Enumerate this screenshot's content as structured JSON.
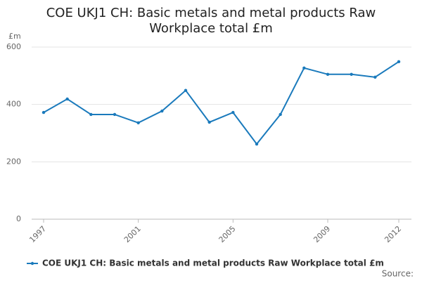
{
  "chart_data": {
    "type": "line",
    "title": "COE UKJ1 CH: Basic metals and metal products Raw Workplace total £m",
    "y_label": "£m",
    "x": [
      1997,
      1998,
      1999,
      2000,
      2001,
      2002,
      2003,
      2004,
      2005,
      2006,
      2007,
      2008,
      2009,
      2010,
      2011,
      2012
    ],
    "series": [
      {
        "name": "COE UKJ1 CH: Basic metals and metal products Raw Workplace total £m",
        "color": "#1a7abc",
        "values": [
          372,
          419,
          365,
          365,
          336,
          377,
          449,
          338,
          372,
          262,
          365,
          527,
          505,
          505,
          495,
          549
        ]
      }
    ],
    "xlim": [
      1997,
      2012
    ],
    "xticks": [
      1997,
      2001,
      2005,
      2009,
      2012
    ],
    "ylim": [
      0,
      600
    ],
    "yticks": [
      0,
      200,
      400,
      600
    ],
    "grid": true,
    "legend": "bottom",
    "source": "Source:"
  }
}
